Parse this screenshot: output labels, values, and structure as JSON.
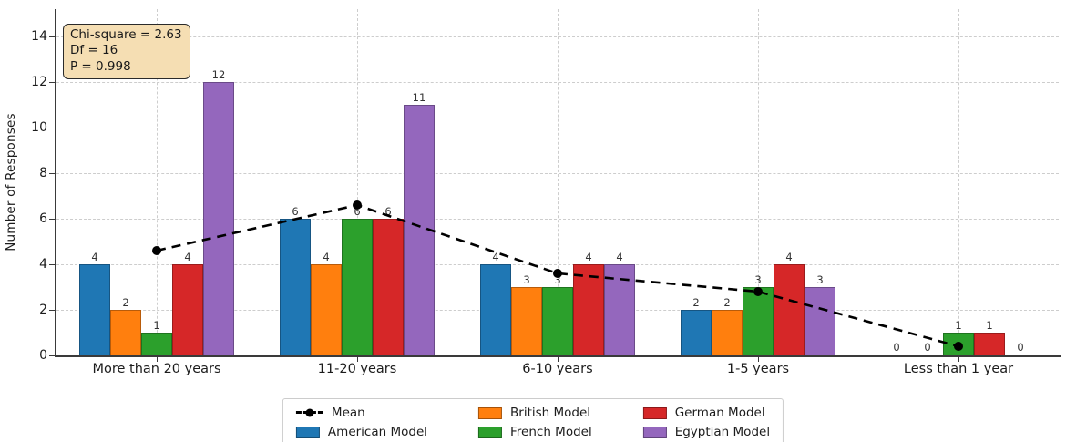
{
  "chart_data": {
    "type": "bar",
    "title": "",
    "xlabel": "",
    "ylabel": "Number of Responses",
    "categories": [
      "More than 20 years",
      "11-20 years",
      "6-10 years",
      "1-5 years",
      "Less than 1 year"
    ],
    "series": [
      {
        "name": "American Model",
        "color": "#1f77b4",
        "values": [
          4,
          6,
          4,
          2,
          0
        ]
      },
      {
        "name": "British Model",
        "color": "#ff7f0e",
        "values": [
          2,
          4,
          3,
          2,
          0
        ]
      },
      {
        "name": "French Model",
        "color": "#2ca02c",
        "values": [
          1,
          6,
          3,
          3,
          1
        ]
      },
      {
        "name": "German Model",
        "color": "#d62728",
        "values": [
          4,
          6,
          4,
          4,
          1
        ]
      },
      {
        "name": "Egyptian Model",
        "color": "#9467bd",
        "values": [
          12,
          11,
          4,
          3,
          0
        ]
      }
    ],
    "mean_line": {
      "name": "Mean",
      "color": "#000000",
      "values": [
        4.6,
        6.6,
        3.6,
        2.8,
        0.4
      ]
    },
    "y_ticks": [
      0,
      2,
      4,
      6,
      8,
      10,
      12,
      14
    ],
    "ylim": [
      0,
      15.2
    ],
    "grid": true,
    "legend_position": "bottom-center",
    "legend_columns": [
      [
        "Mean",
        "American Model"
      ],
      [
        "British Model",
        "French Model"
      ],
      [
        "German Model",
        "Egyptian Model"
      ]
    ],
    "annotation": {
      "lines": [
        "Chi-square = 2.63",
        "Df = 16",
        "P = 0.998"
      ],
      "bg_color": "#f5deb3"
    }
  }
}
